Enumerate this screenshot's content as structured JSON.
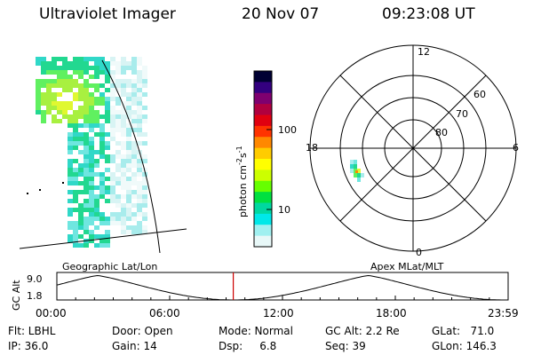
{
  "header": {
    "title": "Ultraviolet Imager",
    "date": "20 Nov 07",
    "time": "09:23:08 UT"
  },
  "colorbar": {
    "label": "photon cm⁻²s⁻¹",
    "label_base": "photon cm",
    "label_exp1": "-2",
    "label_mid": "s",
    "label_exp2": "-1",
    "tick_100": "100",
    "tick_10": "10",
    "colors": [
      "#000033",
      "#33007f",
      "#7f006f",
      "#b0003f",
      "#e00010",
      "#ff3300",
      "#ff8800",
      "#ffcc00",
      "#ffff00",
      "#ccff00",
      "#66ff00",
      "#00e040",
      "#00d8a0",
      "#00e8e8",
      "#a0f0f0",
      "#e8f8f8"
    ]
  },
  "polar": {
    "labels": {
      "mlt12": "12",
      "mlt18": "18",
      "mlt6": "6",
      "mlt0": "0",
      "lat60": "60",
      "lat70": "70",
      "lat80": "80"
    }
  },
  "timeline": {
    "y_axis_label": "GC Alt",
    "y_max": "9.0",
    "y_min": "1.8",
    "left_caption": "Geographic Lat/Lon",
    "right_caption": "Apex MLat/MLT",
    "ticks": [
      "00:00",
      "06:00",
      "12:00",
      "18:00",
      "23:59"
    ],
    "marker_time": "09:23",
    "marker_color": "#cc0000"
  },
  "status": {
    "flt": "Flt: LBHL",
    "ip": "IP: 36.0",
    "door": "Door: Open",
    "gain": "Gain: 14",
    "mode": "Mode: Normal",
    "dsp": "Dsp:     6.8",
    "gc_alt": "GC Alt: 2.2 Re",
    "seq": "Seq: 39",
    "glat": "GLat:   71.0",
    "glon": "GLon: 146.3"
  }
}
